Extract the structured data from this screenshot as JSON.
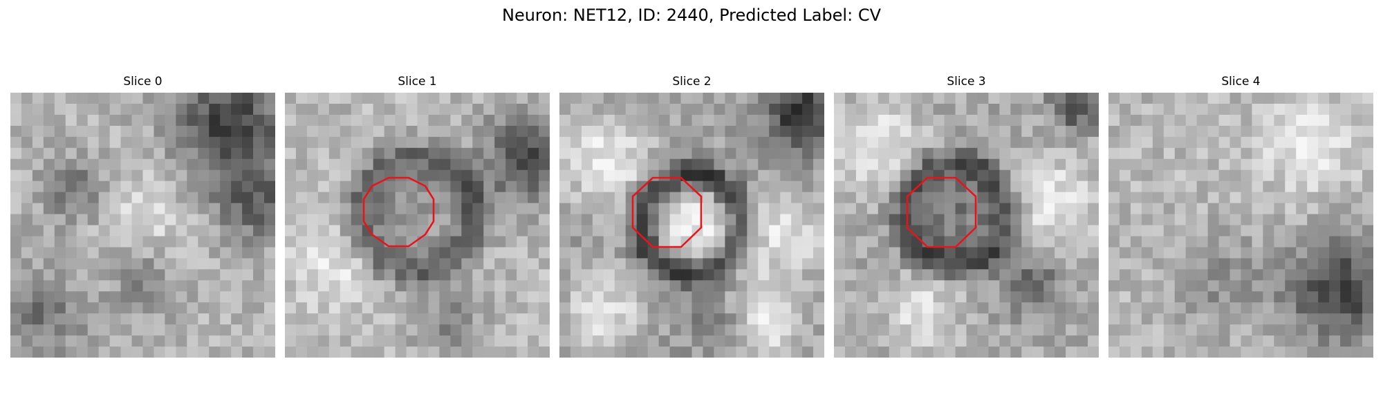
{
  "figure": {
    "title": "Neuron: NET12, ID: 2440, Predicted Label: CV"
  },
  "panels": [
    {
      "title": "Slice 0",
      "roi_visible": false
    },
    {
      "title": "Slice 1",
      "roi_visible": true
    },
    {
      "title": "Slice 2",
      "roi_visible": true
    },
    {
      "title": "Slice 3",
      "roi_visible": true
    },
    {
      "title": "Slice 4",
      "roi_visible": false
    }
  ],
  "colors": {
    "roi_outline": "#e8141c",
    "background": "#ffffff"
  },
  "colormap": "gray"
}
